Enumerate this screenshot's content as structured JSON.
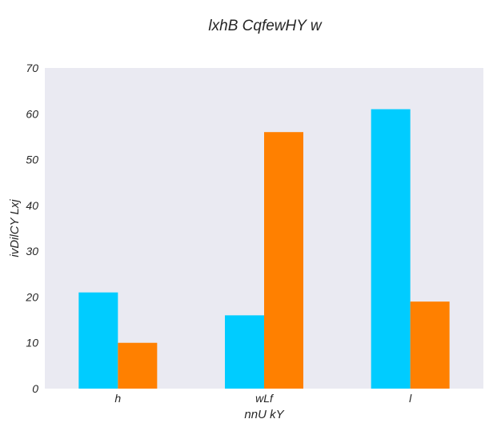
{
  "chart_data": {
    "type": "bar",
    "title": "lxhB CqfewHY w",
    "xlabel": "nnU kY",
    "ylabel": "ivDilCY Lxj",
    "categories": [
      "h",
      "wLf",
      "l"
    ],
    "series": [
      {
        "values": [
          21,
          16,
          61
        ],
        "color": "#00ccff"
      },
      {
        "values": [
          10,
          56,
          19
        ],
        "color": "#ff8000"
      }
    ],
    "ylim": [
      0,
      70
    ],
    "yticks": [
      0,
      10,
      20,
      30,
      40,
      50,
      60,
      70
    ],
    "grid": false,
    "legend": "none",
    "background": "#eaeaf2"
  }
}
